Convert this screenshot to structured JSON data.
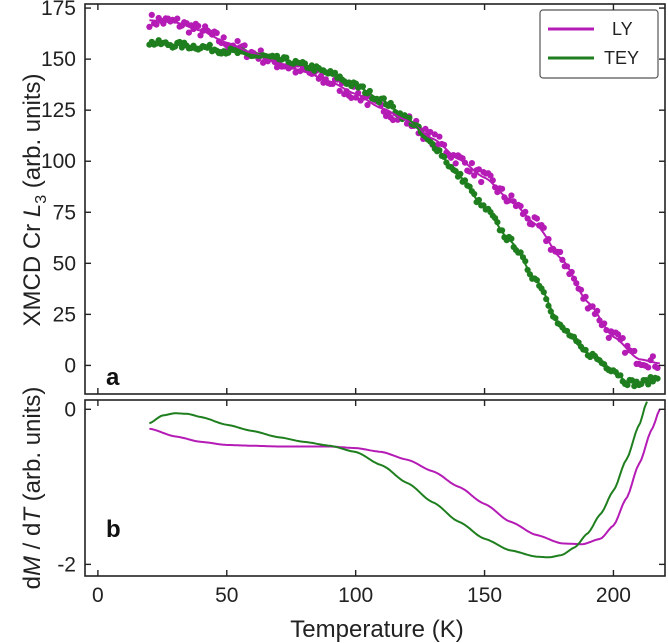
{
  "chart_data": [
    {
      "type": "scatter",
      "panel_label": "a",
      "ylabel_prefix": "XMCD Cr ",
      "ylabel_var": "L",
      "ylabel_sub": "3",
      "ylabel_suffix": " (arb. units)",
      "xlim": [
        -5,
        220
      ],
      "ylim": [
        -14,
        177
      ],
      "yticks": [
        0,
        25,
        50,
        75,
        100,
        125,
        150,
        175
      ],
      "ytick_labels": [
        "0",
        "25",
        "50",
        "75",
        "100",
        "125",
        "150",
        "175"
      ],
      "legend": {
        "position": "top-right",
        "entries": [
          "LY",
          "TEY"
        ]
      },
      "series": [
        {
          "name": "LY",
          "color": "#b51bb5",
          "x": [
            20,
            30,
            40,
            50,
            60,
            70,
            80,
            90,
            100,
            110,
            120,
            130,
            140,
            150,
            160,
            170,
            180,
            190,
            200,
            210,
            218
          ],
          "y": [
            169,
            168,
            164,
            158,
            153,
            148,
            144,
            139,
            133,
            126,
            120,
            111,
            101,
            92,
            81,
            69,
            52,
            31,
            14,
            3,
            1
          ]
        },
        {
          "name": "TEY",
          "color": "#1f7f1f",
          "x": [
            20,
            30,
            40,
            50,
            60,
            70,
            80,
            90,
            100,
            110,
            120,
            130,
            140,
            150,
            160,
            170,
            180,
            190,
            200,
            205,
            210,
            218
          ],
          "y": [
            158,
            157,
            156,
            154,
            152,
            150,
            147,
            143,
            137,
            130,
            121,
            108,
            93,
            77,
            61,
            42,
            18,
            6,
            -2,
            -8,
            -9,
            -6
          ]
        }
      ]
    },
    {
      "type": "line",
      "panel_label": "b",
      "ylabel_prefix": "d",
      "ylabel_var1": "M",
      "ylabel_mid": " / d",
      "ylabel_var2": "T",
      "ylabel_suffix": " (arb. units)",
      "xlabel": "Temperature (K)",
      "xlim": [
        -5,
        220
      ],
      "ylim": [
        -2.15,
        0.12
      ],
      "xticks": [
        0,
        50,
        100,
        150,
        200
      ],
      "xtick_labels": [
        "0",
        "50",
        "100",
        "150",
        "200"
      ],
      "yticks": [
        0,
        -2
      ],
      "ytick_labels": [
        "0",
        "-2"
      ],
      "series": [
        {
          "name": "LY",
          "color": "#b51bb5",
          "x": [
            20,
            30,
            40,
            50,
            60,
            70,
            80,
            90,
            100,
            110,
            120,
            130,
            140,
            150,
            160,
            170,
            180,
            188,
            195,
            200,
            205,
            210,
            215,
            218
          ],
          "y": [
            -0.25,
            -0.35,
            -0.42,
            -0.46,
            -0.47,
            -0.48,
            -0.48,
            -0.48,
            -0.5,
            -0.55,
            -0.65,
            -0.8,
            -1.0,
            -1.22,
            -1.45,
            -1.62,
            -1.73,
            -1.74,
            -1.67,
            -1.5,
            -1.15,
            -0.7,
            -0.25,
            0.0
          ]
        },
        {
          "name": "TEY",
          "color": "#1f7f1f",
          "x": [
            20,
            25,
            30,
            35,
            40,
            50,
            60,
            70,
            80,
            90,
            100,
            110,
            120,
            130,
            140,
            150,
            160,
            170,
            175,
            180,
            185,
            190,
            195,
            200,
            205,
            210,
            213
          ],
          "y": [
            -0.18,
            -0.08,
            -0.05,
            -0.06,
            -0.1,
            -0.2,
            -0.28,
            -0.36,
            -0.42,
            -0.47,
            -0.55,
            -0.72,
            -0.95,
            -1.2,
            -1.45,
            -1.67,
            -1.82,
            -1.9,
            -1.91,
            -1.88,
            -1.78,
            -1.6,
            -1.35,
            -1.05,
            -0.65,
            -0.2,
            0.1
          ]
        }
      ]
    }
  ]
}
